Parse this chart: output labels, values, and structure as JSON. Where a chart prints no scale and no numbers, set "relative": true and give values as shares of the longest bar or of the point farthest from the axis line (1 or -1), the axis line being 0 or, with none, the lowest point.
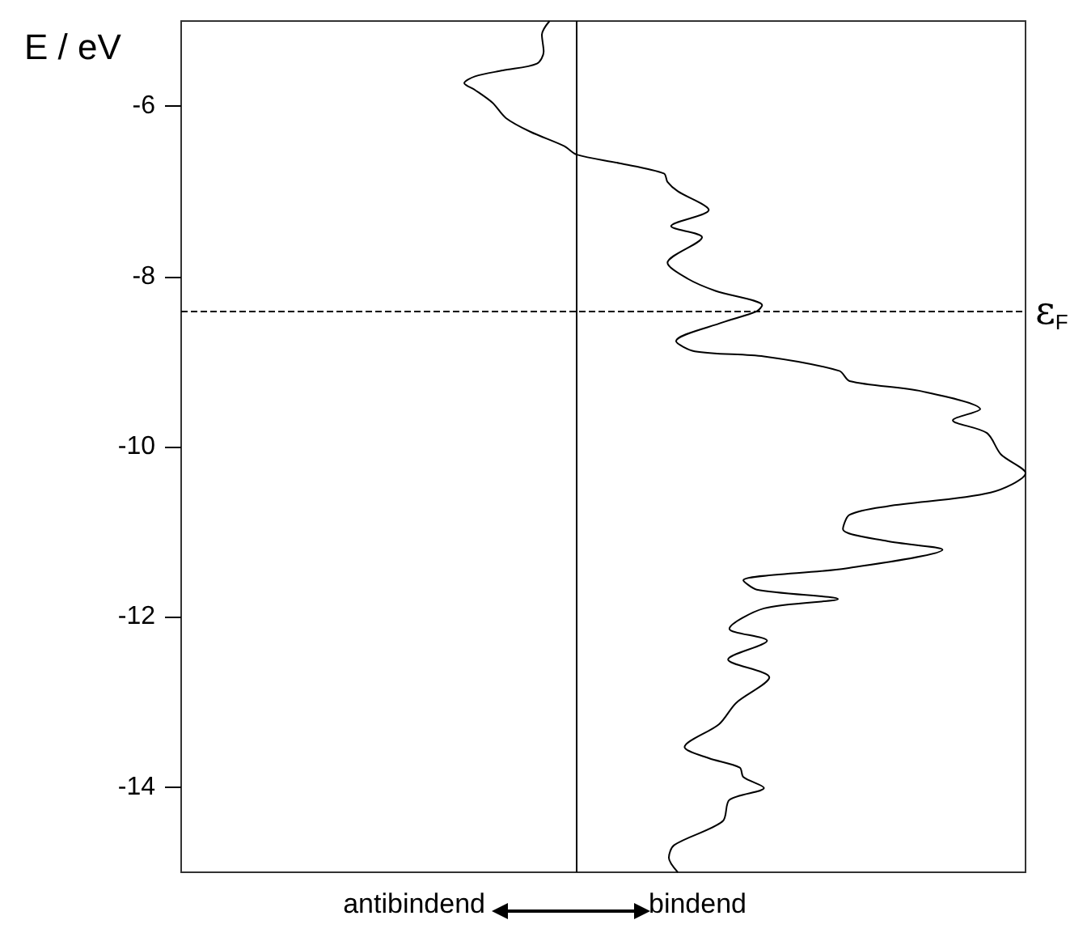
{
  "chart_data": {
    "type": "line",
    "orientation": "horizontal",
    "relative": true,
    "ylabel": "E / eV",
    "ylim": [
      -15,
      -5
    ],
    "yticks": [
      -14,
      -12,
      -10,
      -8,
      -6
    ],
    "tick_labels": "y",
    "grid": false,
    "marker": "none",
    "line_style": "solid",
    "series": [
      {
        "color": "#000000",
        "x": [
          -5.0,
          -5.16,
          -5.36,
          -5.5,
          -5.58,
          -5.65,
          -5.73,
          -5.81,
          -5.96,
          -6.14,
          -6.3,
          -6.47,
          -6.57,
          -6.67,
          -6.79,
          -6.89,
          -7.0,
          -7.22,
          -7.41,
          -7.54,
          -7.84,
          -8.03,
          -8.17,
          -8.34,
          -8.41,
          -8.54,
          -8.76,
          -8.88,
          -8.94,
          -9.11,
          -9.23,
          -9.35,
          -9.56,
          -9.69,
          -9.84,
          -10.09,
          -10.31,
          -10.54,
          -10.7,
          -10.8,
          -10.97,
          -11.11,
          -11.21,
          -11.43,
          -11.57,
          -11.68,
          -11.79,
          -11.9,
          -12.14,
          -12.28,
          -12.5,
          -12.71,
          -13.01,
          -13.26,
          -13.53,
          -13.66,
          -13.77,
          -13.88,
          -14.01,
          -14.15,
          -14.4,
          -14.68,
          -14.83,
          -15.0
        ],
        "values": [
          -0.061,
          -0.078,
          -0.074,
          -0.089,
          -0.165,
          -0.227,
          -0.251,
          -0.227,
          -0.188,
          -0.158,
          -0.104,
          -0.028,
          0,
          0.095,
          0.194,
          0.202,
          0.225,
          0.294,
          0.21,
          0.279,
          0.202,
          0.248,
          0.309,
          0.413,
          0.401,
          0.325,
          0.221,
          0.263,
          0.417,
          0.585,
          0.608,
          0.769,
          0.899,
          0.838,
          0.914,
          0.945,
          1.0,
          0.922,
          0.692,
          0.608,
          0.593,
          0.692,
          0.815,
          0.6,
          0.371,
          0.401,
          0.582,
          0.417,
          0.34,
          0.424,
          0.337,
          0.429,
          0.355,
          0.317,
          0.24,
          0.294,
          0.363,
          0.371,
          0.417,
          0.34,
          0.325,
          0.217,
          0.205,
          0.225
        ]
      }
    ],
    "ref_lines": [
      {
        "axis": "y",
        "value": -8.4,
        "label": "ε$_{F}$",
        "line_style": "dashed"
      }
    ],
    "annotations": [
      "antibindend",
      "bindend"
    ]
  }
}
